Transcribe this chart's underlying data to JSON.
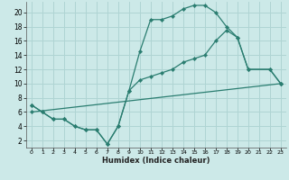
{
  "xlabel": "Humidex (Indice chaleur)",
  "ylabel": "",
  "bg_color": "#cce9e8",
  "grid_color": "#afd4d3",
  "line_color": "#2a7d70",
  "xlim_min": -0.5,
  "xlim_max": 23.5,
  "ylim_min": 1.0,
  "ylim_max": 21.5,
  "xticks": [
    0,
    1,
    2,
    3,
    4,
    5,
    6,
    7,
    8,
    9,
    10,
    11,
    12,
    13,
    14,
    15,
    16,
    17,
    18,
    19,
    20,
    21,
    22,
    23
  ],
  "yticks": [
    2,
    4,
    6,
    8,
    10,
    12,
    14,
    16,
    18,
    20
  ],
  "curve1_x": [
    0,
    1,
    2,
    3,
    4,
    5,
    6,
    7,
    8,
    9,
    10,
    11,
    12,
    13,
    14,
    15,
    16,
    17,
    18,
    19,
    20,
    22,
    23
  ],
  "curve1_y": [
    7,
    6,
    5,
    5,
    4,
    3.5,
    3.5,
    1.5,
    4,
    9,
    14.5,
    19,
    19,
    19.5,
    20.5,
    21,
    21,
    20,
    18,
    16.5,
    12,
    12,
    10
  ],
  "curve2_x": [
    0,
    1,
    2,
    3,
    4,
    5,
    6,
    7,
    8,
    9,
    10,
    11,
    12,
    13,
    14,
    15,
    16,
    17,
    18,
    19,
    20,
    22,
    23
  ],
  "curve2_y": [
    7,
    6,
    5,
    5,
    4,
    3.5,
    3.5,
    1.5,
    4,
    9,
    10.5,
    11,
    11.5,
    12,
    13,
    13.5,
    14,
    16,
    17.5,
    16.5,
    12,
    12,
    10
  ],
  "curve3_x": [
    0,
    23
  ],
  "curve3_y": [
    6,
    10
  ]
}
